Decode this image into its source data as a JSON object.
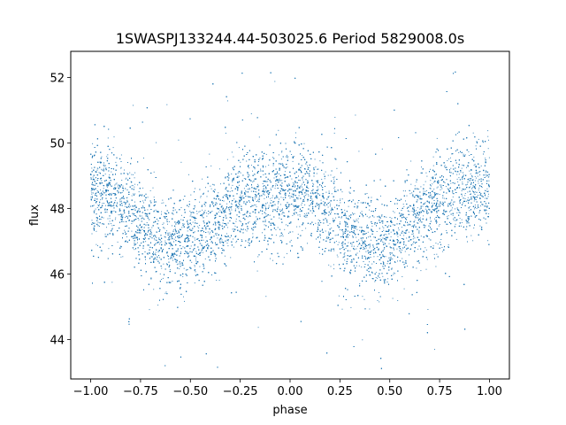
{
  "chart_data": {
    "type": "scatter",
    "title": "1SWASPJ133244.44-503025.6 Period 5829008.0s",
    "xlabel": "phase",
    "ylabel": "flux",
    "xlim": [
      -1.1,
      1.1
    ],
    "ylim": [
      42.8,
      52.8
    ],
    "xticks": [
      -1.0,
      -0.75,
      -0.5,
      -0.25,
      0.0,
      0.25,
      0.5,
      0.75,
      1.0
    ],
    "xtick_labels": [
      "−1.00",
      "−0.75",
      "−0.50",
      "−0.25",
      "0.00",
      "0.25",
      "0.50",
      "0.75",
      "1.00"
    ],
    "yticks": [
      44,
      46,
      48,
      50,
      52
    ],
    "ytick_labels": [
      "44",
      "46",
      "48",
      "50",
      "52"
    ],
    "grid": false,
    "marker_color": "#1f77b4",
    "trend": {
      "x": [
        -1.0,
        -0.9,
        -0.8,
        -0.7,
        -0.6,
        -0.5,
        -0.4,
        -0.3,
        -0.2,
        -0.1,
        0.0,
        0.1,
        0.2,
        0.3,
        0.4,
        0.5,
        0.6,
        0.7,
        0.8,
        0.9,
        1.0
      ],
      "y": [
        48.5,
        48.4,
        47.9,
        47.3,
        47.0,
        47.0,
        47.3,
        48.0,
        48.4,
        48.2,
        48.5,
        48.3,
        47.8,
        47.2,
        46.9,
        47.0,
        47.5,
        48.1,
        48.4,
        48.5,
        48.6
      ]
    },
    "spread": 0.75,
    "point_count": 14000
  }
}
